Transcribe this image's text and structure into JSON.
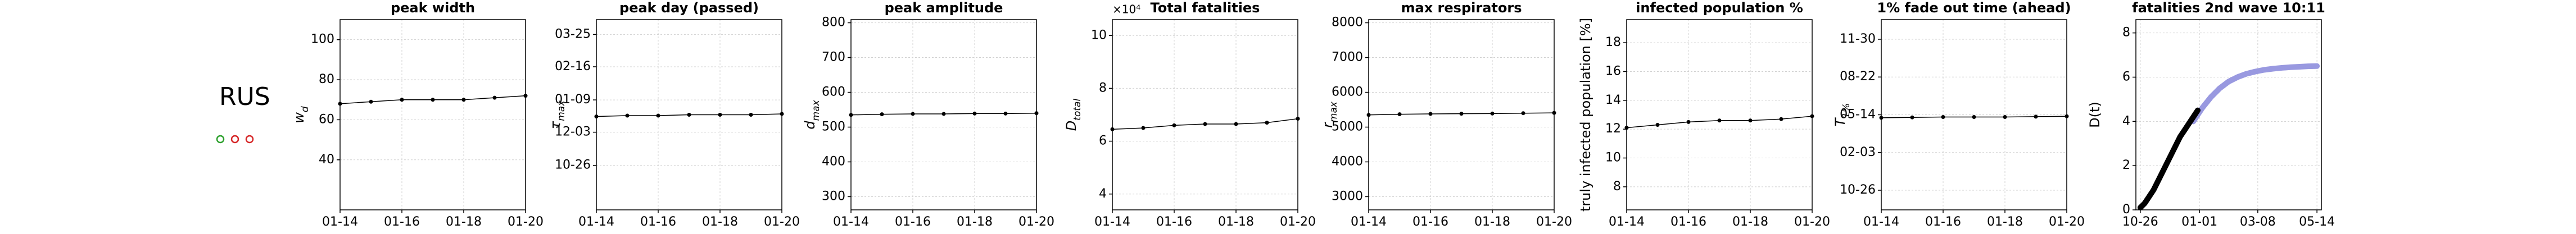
{
  "country": "RUS",
  "chart_data": [
    {
      "type": "line",
      "title": "peak width",
      "ylabel": "w",
      "ylabel_sub": "d",
      "categories": [
        "01-14",
        null,
        "01-16",
        null,
        "01-18",
        null,
        "01-20"
      ],
      "values": [
        68,
        69,
        70,
        70,
        70,
        71,
        72
      ],
      "color": "#000000",
      "ylim": [
        15,
        110
      ],
      "yticks": [
        40,
        60,
        80,
        100
      ],
      "grid": true
    },
    {
      "type": "line",
      "title": "peak day (passed)",
      "ylabel": "τ",
      "ylabel_sub": "max",
      "categories": [
        "01-14",
        null,
        "01-16",
        null,
        "01-18",
        null,
        "01-20"
      ],
      "values": [
        56,
        57,
        57,
        58,
        58,
        58,
        59
      ],
      "color": "#000000",
      "ylim": [
        -51,
        167
      ],
      "yticks": [
        {
          "value": 0,
          "label": "10-26"
        },
        {
          "value": 38,
          "label": "12-03"
        },
        {
          "value": 75,
          "label": "01-09"
        },
        {
          "value": 113,
          "label": "02-16"
        },
        {
          "value": 150,
          "label": "03-25"
        }
      ],
      "grid": true
    },
    {
      "type": "line",
      "title": "peak amplitude",
      "ylabel": "d",
      "ylabel_sub": "max",
      "categories": [
        "01-14",
        null,
        "01-16",
        null,
        "01-18",
        null,
        "01-20"
      ],
      "values": [
        535,
        537,
        538,
        538,
        539,
        539,
        540
      ],
      "color": "#000000",
      "ylim": [
        262,
        809
      ],
      "yticks": [
        300,
        400,
        500,
        600,
        700,
        800
      ],
      "grid": true
    },
    {
      "type": "line",
      "title": "Total fatalities",
      "offset_label": "×10⁴",
      "ylabel": "D",
      "ylabel_sub": "total",
      "categories": [
        "01-14",
        null,
        "01-16",
        null,
        "01-18",
        null,
        "01-20"
      ],
      "values": [
        6.45,
        6.5,
        6.6,
        6.65,
        6.65,
        6.7,
        6.85
      ],
      "color": "#000000",
      "ylim": [
        3.4,
        10.6
      ],
      "yticks": [
        4,
        6,
        8,
        10
      ],
      "grid": true
    },
    {
      "type": "line",
      "title": "max respirators",
      "ylabel": "r",
      "ylabel_sub": "max",
      "categories": [
        "01-14",
        null,
        "01-16",
        null,
        "01-18",
        null,
        "01-20"
      ],
      "values": [
        5350,
        5370,
        5380,
        5385,
        5390,
        5400,
        5410
      ],
      "color": "#000000",
      "ylim": [
        2620,
        8090
      ],
      "yticks": [
        3000,
        4000,
        5000,
        6000,
        7000,
        8000
      ],
      "grid": true
    },
    {
      "type": "line",
      "title": "infected population %",
      "ylabel": "truly infected population [%]",
      "categories": [
        "01-14",
        null,
        "01-16",
        null,
        "01-18",
        null,
        "01-20"
      ],
      "values": [
        12.1,
        12.3,
        12.5,
        12.6,
        12.6,
        12.7,
        12.9
      ],
      "color": "#000000",
      "ylim": [
        6.4,
        19.6
      ],
      "yticks": [
        8,
        10,
        12,
        14,
        16,
        18
      ],
      "grid": true
    },
    {
      "type": "line",
      "title": "1% fade out time (ahead)",
      "ylabel": "T",
      "ylabel_sub": "1%",
      "categories": [
        "01-14",
        null,
        "01-16",
        null,
        "01-18",
        null,
        "01-20"
      ],
      "values": [
        192,
        193,
        194,
        194,
        194,
        195,
        196
      ],
      "color": "#000000",
      "ylim": [
        -52,
        452
      ],
      "yticks": [
        {
          "value": 0,
          "label": "10-26"
        },
        {
          "value": 100,
          "label": "02-03"
        },
        {
          "value": 200,
          "label": "05-14"
        },
        {
          "value": 300,
          "label": "08-22"
        },
        {
          "value": 400,
          "label": "11-30"
        }
      ],
      "grid": true
    },
    {
      "type": "line",
      "title": "fatalities 2nd wave 10:11",
      "ylabel": "D(t)",
      "xlim": [
        -5,
        205
      ],
      "xticks": [
        {
          "value": 0,
          "label": "10-26"
        },
        {
          "value": 67,
          "label": "01-01"
        },
        {
          "value": 133,
          "label": "03-08"
        },
        {
          "value": 200,
          "label": "05-14"
        }
      ],
      "ylim": [
        0,
        8.6
      ],
      "yticks": [
        0,
        2,
        4,
        6,
        8
      ],
      "grid": true,
      "series": [
        {
          "color": "#9999e0",
          "x": [
            60,
            70,
            80,
            90,
            100,
            110,
            120,
            130,
            140,
            150,
            160,
            170,
            180,
            190,
            200
          ],
          "values": [
            4.0,
            4.6,
            5.1,
            5.5,
            5.8,
            6.0,
            6.15,
            6.25,
            6.33,
            6.38,
            6.42,
            6.45,
            6.47,
            6.49,
            6.5
          ]
        },
        {
          "color": "#000000",
          "x": [
            0,
            5,
            10,
            15,
            20,
            25,
            30,
            35,
            40,
            45,
            50,
            55,
            60,
            65
          ],
          "values": [
            0.1,
            0.3,
            0.6,
            0.9,
            1.3,
            1.7,
            2.1,
            2.5,
            2.9,
            3.3,
            3.6,
            3.9,
            4.2,
            4.5
          ]
        }
      ]
    }
  ]
}
